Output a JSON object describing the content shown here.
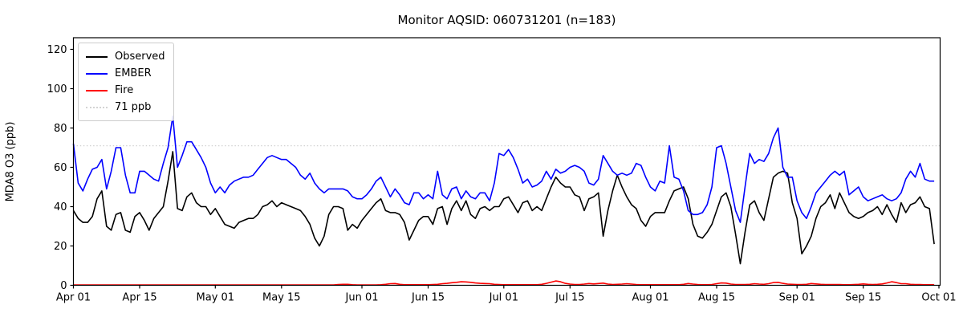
{
  "window": {
    "title": "Monitor AQSID: 060731201 (n=183)"
  },
  "chart_data": {
    "type": "line",
    "title": "Monitor AQSID: 060731201 (n=183)",
    "xlabel": "",
    "ylabel": "MDA8 O3 (ppb)",
    "n_points": 183,
    "x_start": "Apr 01",
    "x_end": "Sep 30",
    "xlim_days": [
      0,
      183
    ],
    "ylim": [
      0,
      126
    ],
    "yticks": [
      0,
      20,
      40,
      60,
      80,
      100,
      120
    ],
    "grid": false,
    "legend_position": "upper left",
    "xticks": [
      {
        "day": 0,
        "label": "Apr 01"
      },
      {
        "day": 14,
        "label": "Apr 15"
      },
      {
        "day": 30,
        "label": "May 01"
      },
      {
        "day": 44,
        "label": "May 15"
      },
      {
        "day": 61,
        "label": "Jun 01"
      },
      {
        "day": 75,
        "label": "Jun 15"
      },
      {
        "day": 91,
        "label": "Jul 01"
      },
      {
        "day": 105,
        "label": "Jul 15"
      },
      {
        "day": 122,
        "label": "Aug 01"
      },
      {
        "day": 136,
        "label": "Aug 15"
      },
      {
        "day": 153,
        "label": "Sep 01"
      },
      {
        "day": 167,
        "label": "Sep 15"
      },
      {
        "day": 183,
        "label": "Oct 01"
      }
    ],
    "ref_line": {
      "value": 71,
      "label": "71 ppb",
      "color": "#d3d3d3",
      "style": "dotted"
    },
    "series": [
      {
        "name": "Observed",
        "color": "#000000",
        "values": [
          38,
          34,
          32,
          32,
          35,
          44,
          48,
          30,
          28,
          36,
          37,
          28,
          27,
          35,
          37,
          33,
          28,
          34,
          37,
          40,
          53,
          68,
          39,
          38,
          45,
          47,
          42,
          40,
          40,
          36,
          39,
          35,
          31,
          30,
          29,
          32,
          33,
          34,
          34,
          36,
          40,
          41,
          43,
          40,
          42,
          41,
          40,
          39,
          38,
          35,
          31,
          24,
          20,
          25,
          36,
          40,
          40,
          39,
          28,
          31,
          29,
          33,
          36,
          39,
          42,
          44,
          38,
          37,
          37,
          36,
          32,
          23,
          28,
          33,
          35,
          35,
          31,
          39,
          40,
          31,
          39,
          43,
          38,
          43,
          36,
          34,
          39,
          40,
          38,
          40,
          40,
          44,
          45,
          41,
          37,
          42,
          43,
          38,
          40,
          38,
          44,
          50,
          55,
          52,
          50,
          50,
          46,
          45,
          38,
          44,
          45,
          47,
          25,
          38,
          48,
          56,
          50,
          45,
          41,
          39,
          33,
          30,
          35,
          37,
          37,
          37,
          43,
          48,
          49,
          50,
          44,
          31,
          25,
          24,
          27,
          31,
          38,
          45,
          47,
          40,
          26,
          11,
          27,
          41,
          43,
          37,
          33,
          44,
          55,
          57,
          58,
          57,
          42,
          34,
          16,
          20,
          25,
          34,
          40,
          42,
          46,
          39,
          47,
          42,
          37,
          35,
          34,
          35,
          37,
          38,
          40,
          36,
          41,
          36,
          32,
          42,
          37,
          41,
          42,
          45,
          40,
          39,
          21
        ]
      },
      {
        "name": "EMBER",
        "color": "#0000ff",
        "values": [
          72,
          52,
          48,
          54,
          59,
          60,
          64,
          49,
          58,
          70,
          70,
          56,
          47,
          47,
          58,
          58,
          56,
          54,
          53,
          62,
          70,
          86,
          60,
          66,
          73,
          73,
          69,
          65,
          60,
          52,
          47,
          50,
          47,
          51,
          53,
          54,
          55,
          55,
          56,
          59,
          62,
          65,
          66,
          65,
          64,
          64,
          62,
          60,
          56,
          54,
          57,
          52,
          49,
          47,
          49,
          49,
          49,
          49,
          48,
          45,
          44,
          44,
          46,
          49,
          53,
          55,
          50,
          45,
          49,
          46,
          42,
          41,
          47,
          47,
          44,
          46,
          44,
          58,
          46,
          44,
          49,
          50,
          44,
          48,
          45,
          44,
          47,
          47,
          43,
          52,
          67,
          66,
          69,
          65,
          59,
          52,
          54,
          50,
          51,
          53,
          58,
          54,
          59,
          57,
          58,
          60,
          61,
          60,
          58,
          52,
          51,
          54,
          66,
          62,
          58,
          56,
          57,
          56,
          57,
          62,
          61,
          55,
          50,
          48,
          53,
          52,
          71,
          55,
          54,
          48,
          38,
          36,
          36,
          37,
          41,
          50,
          70,
          71,
          62,
          50,
          38,
          32,
          50,
          67,
          62,
          64,
          63,
          67,
          75,
          80,
          60,
          55,
          55,
          43,
          37,
          34,
          40,
          47,
          50,
          53,
          56,
          58,
          56,
          58,
          46,
          48,
          50,
          45,
          43,
          44,
          45,
          46,
          44,
          43,
          44,
          47,
          54,
          58,
          55,
          62,
          54,
          53,
          53
        ]
      },
      {
        "name": "Fire",
        "color": "#ff0000",
        "values": [
          0.2,
          0.2,
          0.2,
          0.2,
          0.2,
          0.2,
          0.2,
          0.2,
          0.2,
          0.2,
          0.2,
          0.2,
          0.2,
          0.2,
          0.2,
          0.2,
          0.2,
          0.2,
          0.2,
          0.2,
          0.2,
          0.2,
          0.2,
          0.2,
          0.2,
          0.2,
          0.2,
          0.2,
          0.2,
          0.2,
          0.2,
          0.2,
          0.2,
          0.2,
          0.2,
          0.2,
          0.2,
          0.2,
          0.2,
          0.2,
          0.2,
          0.2,
          0.2,
          0.2,
          0.2,
          0.2,
          0.2,
          0.2,
          0.2,
          0.2,
          0.2,
          0.2,
          0.2,
          0.2,
          0.2,
          0.2,
          0.4,
          0.5,
          0.5,
          0.3,
          0.2,
          0.2,
          0.2,
          0.2,
          0.2,
          0.3,
          0.5,
          0.8,
          0.9,
          0.5,
          0.3,
          0.3,
          0.3,
          0.3,
          0.3,
          0.3,
          0.4,
          0.5,
          0.8,
          1.0,
          1.3,
          1.5,
          1.8,
          1.7,
          1.5,
          1.2,
          1.0,
          0.9,
          0.8,
          0.5,
          0.4,
          0.3,
          0.3,
          0.3,
          0.3,
          0.3,
          0.3,
          0.3,
          0.3,
          0.5,
          1.0,
          1.6,
          2.2,
          1.8,
          1.0,
          0.6,
          0.4,
          0.4,
          0.6,
          0.9,
          0.7,
          0.9,
          1.1,
          0.6,
          0.4,
          0.5,
          0.6,
          0.8,
          0.6,
          0.4,
          0.3,
          0.3,
          0.3,
          0.3,
          0.3,
          0.3,
          0.3,
          0.3,
          0.3,
          0.5,
          0.9,
          0.6,
          0.4,
          0.3,
          0.3,
          0.4,
          0.8,
          1.2,
          1.1,
          0.6,
          0.4,
          0.4,
          0.4,
          0.5,
          0.8,
          0.6,
          0.5,
          0.8,
          1.4,
          1.5,
          1.0,
          0.6,
          0.5,
          0.4,
          0.4,
          0.5,
          0.9,
          0.7,
          0.5,
          0.4,
          0.4,
          0.4,
          0.4,
          0.3,
          0.3,
          0.4,
          0.5,
          0.7,
          0.5,
          0.4,
          0.5,
          0.7,
          1.2,
          1.8,
          1.4,
          0.8,
          0.8,
          0.5,
          0.4,
          0.4,
          0.3,
          0.3,
          0.3
        ]
      }
    ]
  }
}
